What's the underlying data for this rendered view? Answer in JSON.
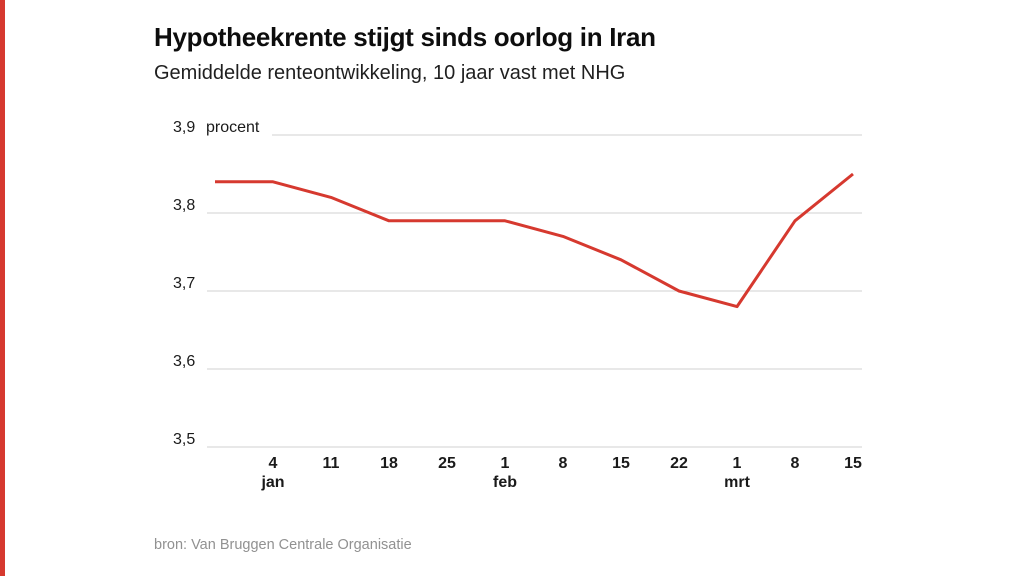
{
  "accent_color": "#d6392f",
  "grid_color": "#d2d2d2",
  "header": {
    "title": "Hypotheekrente stijgt sinds oorlog in Iran",
    "subtitle": "Gemiddelde renteontwikkeling, 10 jaar vast met NHG"
  },
  "source_note": "bron: Van Bruggen Centrale Organisatie",
  "chart_data": {
    "type": "line",
    "title": "Hypotheekrente stijgt sinds oorlog in Iran",
    "subtitle": "Gemiddelde renteontwikkeling, 10 jaar vast met NHG",
    "unit_label": "procent",
    "line_color": "#d6392f",
    "grid": true,
    "legend": "none",
    "ylim": [
      3.5,
      3.9
    ],
    "yticks": [
      {
        "value": 3.9,
        "label": "3,9"
      },
      {
        "value": 3.8,
        "label": "3,8"
      },
      {
        "value": 3.7,
        "label": "3,7"
      },
      {
        "value": 3.6,
        "label": "3,6"
      },
      {
        "value": 3.5,
        "label": "3,5"
      }
    ],
    "x_labels": [
      "",
      "4",
      "11",
      "18",
      "25",
      "1",
      "8",
      "15",
      "22",
      "1",
      "8",
      "15"
    ],
    "x_month_labels": [
      "",
      "jan",
      "",
      "",
      "",
      "feb",
      "",
      "",
      "",
      "mrt",
      "",
      ""
    ],
    "values": [
      3.84,
      3.84,
      3.82,
      3.79,
      3.79,
      3.79,
      3.77,
      3.74,
      3.7,
      3.68,
      3.79,
      3.85
    ]
  }
}
